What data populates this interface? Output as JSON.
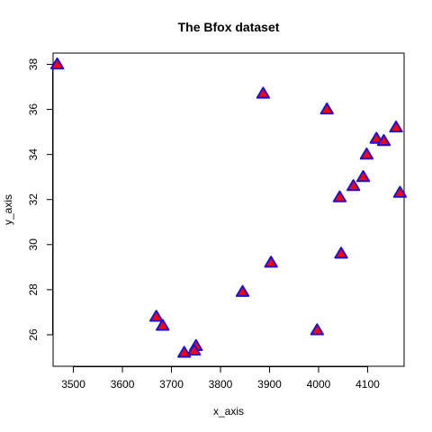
{
  "chart_data": {
    "type": "scatter",
    "title": "The Bfox dataset",
    "xlabel": "x_axis",
    "ylabel": "y_axis",
    "xlim": [
      3458.6,
      4174.4
    ],
    "ylim": [
      24.6,
      38.5
    ],
    "xticks": [
      3500,
      3600,
      3700,
      3800,
      3900,
      4000,
      4100
    ],
    "yticks": [
      26,
      28,
      30,
      32,
      34,
      36,
      38
    ],
    "grid": false,
    "legend": "none",
    "marker": {
      "shape": "triangle",
      "fill": "#ff0000",
      "stroke": "#1f0fd6"
    },
    "points": [
      {
        "x": 3467,
        "y": 38.0
      },
      {
        "x": 3887,
        "y": 36.7
      },
      {
        "x": 4017,
        "y": 36.0
      },
      {
        "x": 4158,
        "y": 35.2
      },
      {
        "x": 4118,
        "y": 34.7
      },
      {
        "x": 4133,
        "y": 34.6
      },
      {
        "x": 4098,
        "y": 34.0
      },
      {
        "x": 4091,
        "y": 33.0
      },
      {
        "x": 4071,
        "y": 32.6
      },
      {
        "x": 4166,
        "y": 32.3
      },
      {
        "x": 4043,
        "y": 32.1
      },
      {
        "x": 4046,
        "y": 29.6
      },
      {
        "x": 3903,
        "y": 29.2
      },
      {
        "x": 3845,
        "y": 27.9
      },
      {
        "x": 3669,
        "y": 26.8
      },
      {
        "x": 3682,
        "y": 26.4
      },
      {
        "x": 3997,
        "y": 26.2
      },
      {
        "x": 3750,
        "y": 25.5
      },
      {
        "x": 3746,
        "y": 25.3
      },
      {
        "x": 3726,
        "y": 25.2
      }
    ]
  }
}
